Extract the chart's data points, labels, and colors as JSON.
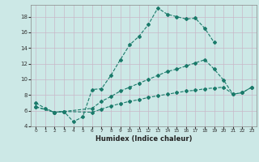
{
  "line1_x": [
    0,
    1,
    2,
    3,
    4,
    5,
    6,
    7,
    8,
    9,
    10,
    11,
    12,
    13,
    14,
    15,
    16,
    17,
    18,
    19
  ],
  "line1_y": [
    7.0,
    6.3,
    5.8,
    5.9,
    4.6,
    5.2,
    8.7,
    8.8,
    10.5,
    12.5,
    14.4,
    15.5,
    17.0,
    19.1,
    18.3,
    18.0,
    17.7,
    17.8,
    16.5,
    14.7
  ],
  "line2_x": [
    0,
    2,
    3,
    6,
    7,
    8,
    9,
    10,
    11,
    12,
    13,
    14,
    15,
    16,
    17,
    18,
    19,
    20,
    21,
    22,
    23
  ],
  "line2_y": [
    6.5,
    5.8,
    5.9,
    6.3,
    7.2,
    7.8,
    8.5,
    9.0,
    9.5,
    10.0,
    10.5,
    11.0,
    11.3,
    11.7,
    12.1,
    12.5,
    11.3,
    9.9,
    8.1,
    8.3,
    9.0
  ],
  "line3_x": [
    0,
    2,
    3,
    6,
    7,
    8,
    9,
    10,
    11,
    12,
    13,
    14,
    15,
    16,
    17,
    18,
    19,
    20,
    21,
    22,
    23
  ],
  "line3_y": [
    6.5,
    5.8,
    5.9,
    5.8,
    6.2,
    6.6,
    6.9,
    7.2,
    7.4,
    7.7,
    7.9,
    8.1,
    8.3,
    8.5,
    8.6,
    8.8,
    8.9,
    9.0,
    8.1,
    8.3,
    9.0
  ],
  "color": "#1a7a6a",
  "bg_color": "#cce8e6",
  "grid_color_major": "#b0cece",
  "grid_color_minor": "#d8ecec",
  "xlabel": "Humidex (Indice chaleur)",
  "xlim": [
    -0.5,
    23.5
  ],
  "ylim": [
    4,
    19.5
  ],
  "yticks": [
    4,
    6,
    8,
    10,
    12,
    14,
    16,
    18
  ],
  "xticks": [
    0,
    1,
    2,
    3,
    4,
    5,
    6,
    7,
    8,
    9,
    10,
    11,
    12,
    13,
    14,
    15,
    16,
    17,
    18,
    19,
    20,
    21,
    22,
    23
  ]
}
